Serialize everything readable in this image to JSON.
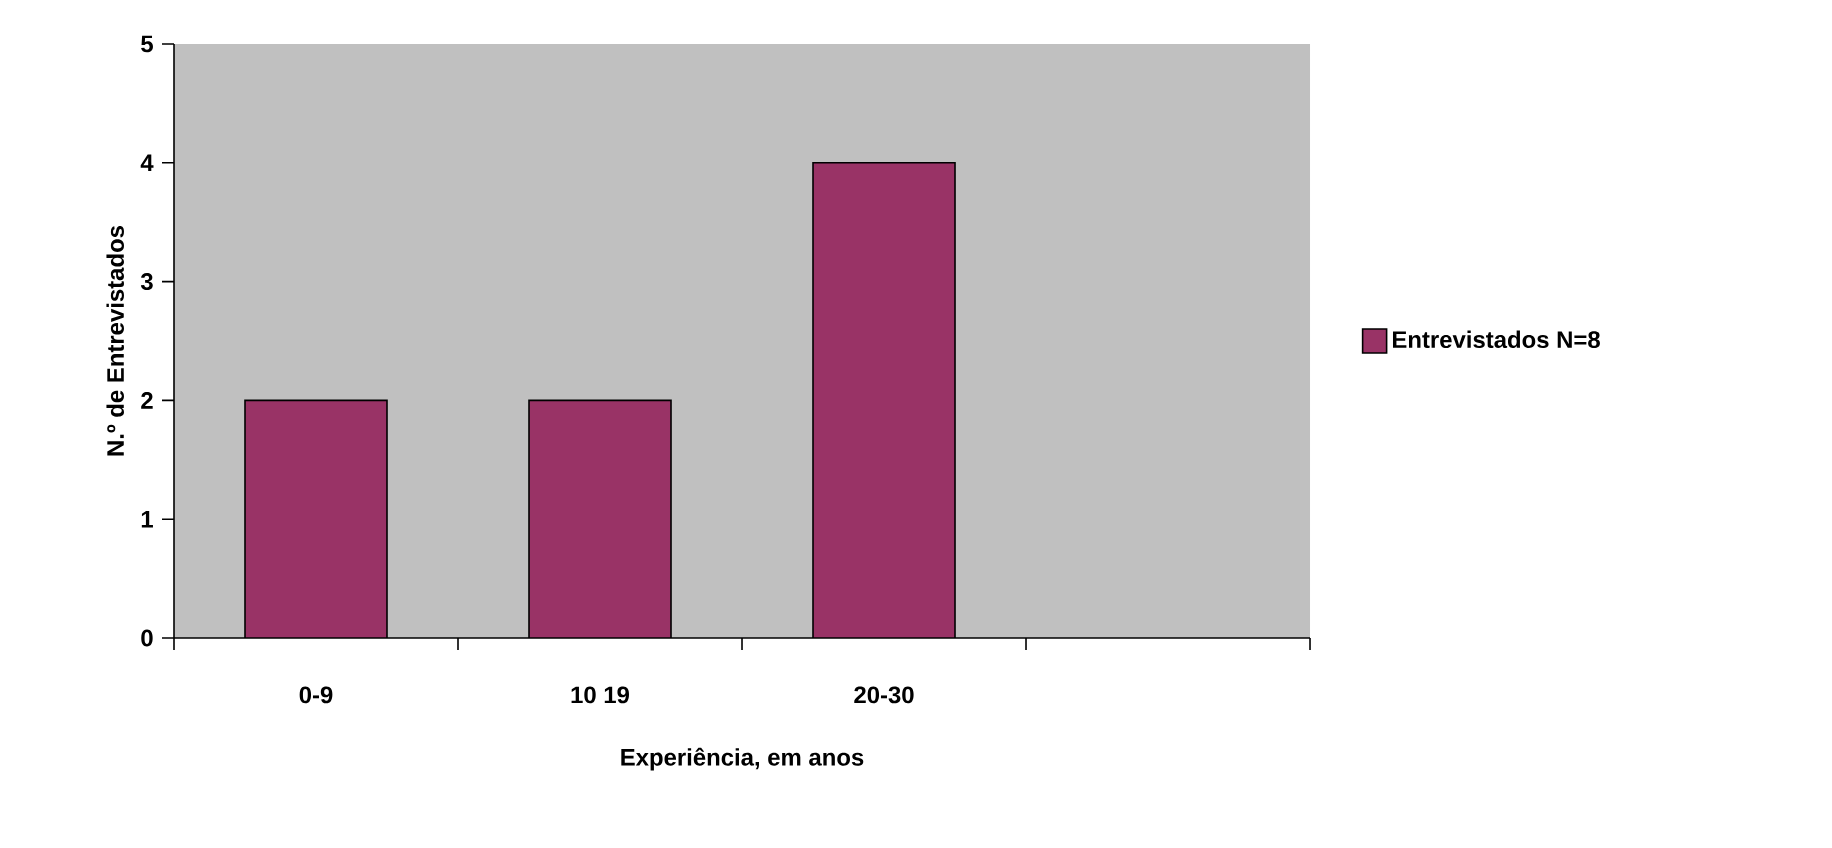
{
  "chart_data": {
    "type": "bar",
    "xlabel": "Experiência, em anos",
    "ylabel": "N.º de Entrevistados",
    "categories": [
      "0-9",
      "10 19",
      "20-30",
      null
    ],
    "series": [
      {
        "name": "Entrevistados N=8",
        "color": "#993366",
        "values": [
          2,
          2,
          4,
          null
        ]
      }
    ],
    "ylim": [
      0,
      5
    ],
    "yticks": [
      0,
      1,
      2,
      3,
      4,
      5
    ],
    "grid": false,
    "legend": "right"
  }
}
